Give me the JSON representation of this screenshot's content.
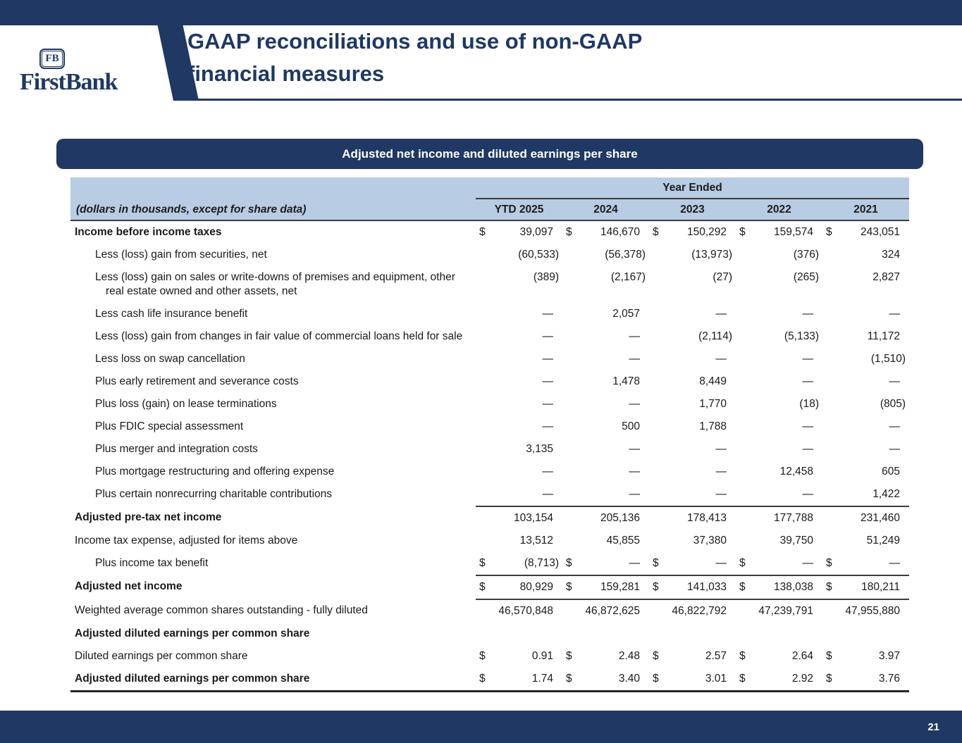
{
  "colors": {
    "navy": "#1f3864",
    "light_blue": "#b8cce4"
  },
  "header": {
    "logo_emblem": "FB",
    "logo_name": "FirstBank",
    "title_line1": "GAAP reconciliations and use of non-GAAP",
    "title_line2": "financial measures"
  },
  "banner": {
    "title": "Adjusted net income and diluted earnings per share"
  },
  "table": {
    "group_header": "Year Ended",
    "label_header": "(dollars in thousands, except for share data)",
    "year_columns": [
      "YTD 2025",
      "2024",
      "2023",
      "2022",
      "2021"
    ],
    "rows": [
      {
        "label": "Income before income taxes",
        "bold": true,
        "dollar": true,
        "values": [
          "39,097",
          "146,670",
          "150,292",
          "159,574",
          "243,051"
        ]
      },
      {
        "label": "Less (loss) gain from securities, net",
        "indent": true,
        "values": [
          "(60,533)",
          "(56,378)",
          "(13,973)",
          "(376)",
          "324"
        ]
      },
      {
        "label": "Less (loss) gain on sales or write-downs of premises and equipment, other real estate owned and other assets, net",
        "indent": true,
        "values": [
          "(389)",
          "(2,167)",
          "(27)",
          "(265)",
          "2,827"
        ]
      },
      {
        "label": "Less cash life insurance benefit",
        "indent": true,
        "values": [
          "—",
          "2,057",
          "—",
          "—",
          "—"
        ]
      },
      {
        "label": "Less (loss) gain from changes in fair value of commercial loans held for sale",
        "indent": true,
        "values": [
          "—",
          "—",
          "(2,114)",
          "(5,133)",
          "11,172"
        ]
      },
      {
        "label": "Less loss on swap cancellation",
        "indent": true,
        "values": [
          "—",
          "—",
          "—",
          "—",
          "(1,510)"
        ]
      },
      {
        "label": "Plus early retirement and severance costs",
        "indent": true,
        "values": [
          "—",
          "1,478",
          "8,449",
          "—",
          "—"
        ]
      },
      {
        "label": "Plus loss (gain) on lease terminations",
        "indent": true,
        "values": [
          "—",
          "—",
          "1,770",
          "(18)",
          "(805)"
        ]
      },
      {
        "label": "Plus FDIC special assessment",
        "indent": true,
        "values": [
          "—",
          "500",
          "1,788",
          "—",
          "—"
        ]
      },
      {
        "label": "Plus merger and integration costs",
        "indent": true,
        "values": [
          "3,135",
          "—",
          "—",
          "—",
          "—"
        ]
      },
      {
        "label": "Plus mortgage restructuring and offering expense",
        "indent": true,
        "values": [
          "—",
          "—",
          "—",
          "12,458",
          "605"
        ]
      },
      {
        "label": "Plus certain nonrecurring charitable contributions",
        "indent": true,
        "values": [
          "—",
          "—",
          "—",
          "—",
          "1,422"
        ]
      },
      {
        "label": "Adjusted pre-tax net income",
        "bold": true,
        "rule_top": true,
        "values": [
          "103,154",
          "205,136",
          "178,413",
          "177,788",
          "231,460"
        ]
      },
      {
        "label": "Income tax expense, adjusted for items above",
        "values": [
          "13,512",
          "45,855",
          "37,380",
          "39,750",
          "51,249"
        ]
      },
      {
        "label": "Plus income tax benefit",
        "indent": true,
        "dollar": true,
        "values": [
          "(8,713)",
          "—",
          "—",
          "—",
          "—"
        ]
      },
      {
        "label": "Adjusted net income",
        "bold": true,
        "dollar": true,
        "rule_top": true,
        "rule_bottom": true,
        "values": [
          "80,929",
          "159,281",
          "141,033",
          "138,038",
          "180,211"
        ]
      },
      {
        "label": "Weighted average common shares outstanding - fully diluted",
        "values": [
          "46,570,848",
          "46,872,625",
          "46,822,792",
          "47,239,791",
          "47,955,880"
        ]
      },
      {
        "label": "Adjusted diluted earnings per common share",
        "bold": true,
        "values": null
      },
      {
        "label": "Diluted earnings per common share",
        "dollar": true,
        "values": [
          "0.91",
          "2.48",
          "2.57",
          "2.64",
          "3.97"
        ]
      },
      {
        "label": "Adjusted diluted earnings per common share",
        "bold": true,
        "dollar": true,
        "values": [
          "1.74",
          "3.40",
          "3.01",
          "2.92",
          "3.76"
        ]
      }
    ]
  },
  "footer": {
    "page_number": "21"
  }
}
